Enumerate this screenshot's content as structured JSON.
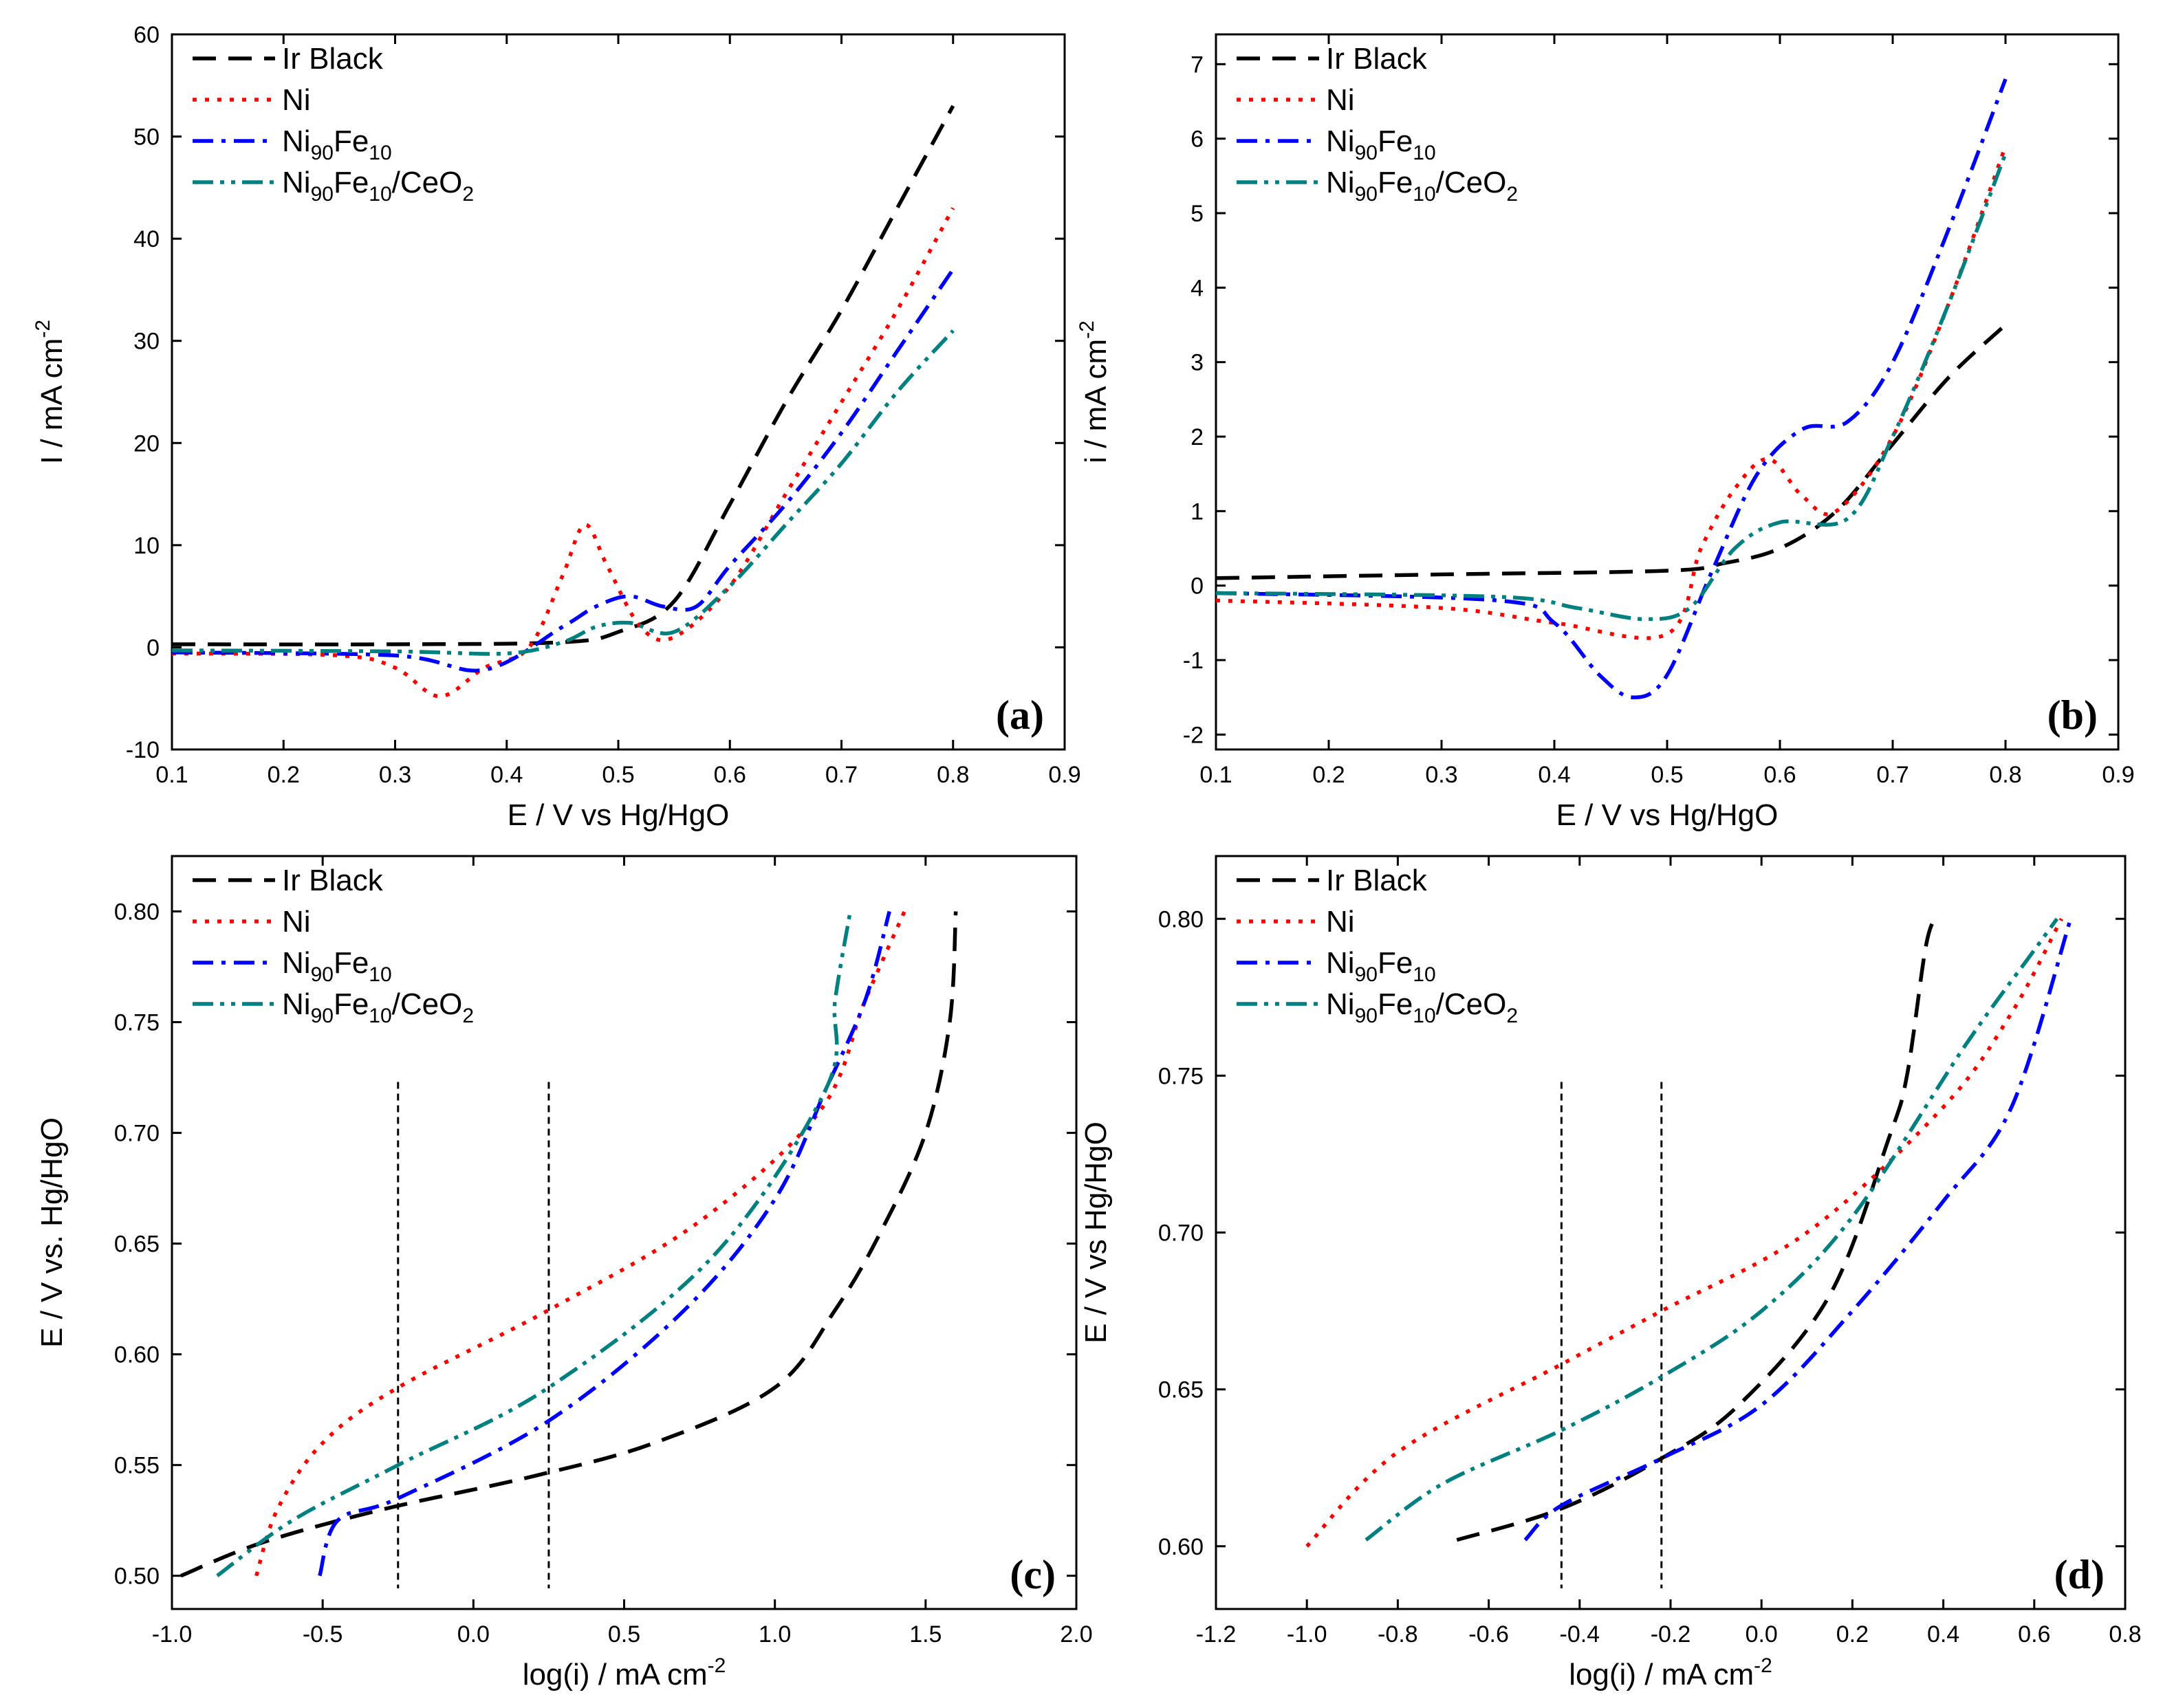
{
  "chart_data": [
    {
      "panel": "(a)",
      "type": "line",
      "xlabel": "E / V vs Hg/HgO",
      "ylabel": "I / mA cm",
      "ylabel_sup": "-2",
      "xlim": [
        0.1,
        0.9
      ],
      "ylim": [
        -10,
        60
      ],
      "xticks": [
        "0.1",
        "0.2",
        "0.3",
        "0.4",
        "0.5",
        "0.6",
        "0.7",
        "0.8",
        "0.9"
      ],
      "yticks": [
        "-10",
        "0",
        "10",
        "20",
        "30",
        "40",
        "50",
        "60"
      ],
      "series": [
        {
          "name": "Ir Black",
          "color": "#000000",
          "dash": "dash",
          "x": [
            0.1,
            0.3,
            0.45,
            0.5,
            0.55,
            0.6,
            0.65,
            0.7,
            0.75,
            0.8
          ],
          "y": [
            0.3,
            0.3,
            0.5,
            1.5,
            4.5,
            14,
            24,
            33,
            43,
            53
          ]
        },
        {
          "name": "Ni",
          "color": "#ff0000",
          "dash": "dot",
          "x": [
            0.1,
            0.25,
            0.3,
            0.34,
            0.38,
            0.42,
            0.45,
            0.47,
            0.49,
            0.52,
            0.55,
            0.6,
            0.65,
            0.7,
            0.75,
            0.8
          ],
          "y": [
            -0.6,
            -0.8,
            -2,
            -4.8,
            -2,
            0,
            7,
            12,
            8,
            2,
            1,
            6,
            15,
            24,
            33,
            43
          ]
        },
        {
          "name": "Ni90Fe10",
          "color": "#0000ff",
          "dash": "dashdot",
          "x": [
            0.1,
            0.3,
            0.38,
            0.45,
            0.48,
            0.51,
            0.54,
            0.57,
            0.6,
            0.65,
            0.7,
            0.75,
            0.8
          ],
          "y": [
            -0.5,
            -0.8,
            -2.2,
            2,
            4,
            5,
            4,
            4,
            8,
            14,
            21,
            29,
            37
          ]
        },
        {
          "name": "Ni90Fe10/CeO2",
          "color": "#008080",
          "dash": "dashdotdot",
          "x": [
            0.1,
            0.3,
            0.4,
            0.45,
            0.48,
            0.51,
            0.55,
            0.6,
            0.65,
            0.7,
            0.75,
            0.8
          ],
          "y": [
            -0.3,
            -0.4,
            -0.6,
            0.5,
            2,
            2.4,
            1.5,
            6,
            12,
            18,
            25,
            31
          ]
        }
      ]
    },
    {
      "panel": "(b)",
      "type": "line",
      "xlabel": "E / V vs Hg/HgO",
      "ylabel": "i / mA cm",
      "ylabel_sup": "-2",
      "xlim": [
        0.1,
        0.9
      ],
      "ylim": [
        -2.2,
        7.4
      ],
      "xticks": [
        "0.1",
        "0.2",
        "0.3",
        "0.4",
        "0.5",
        "0.6",
        "0.7",
        "0.8",
        "0.9"
      ],
      "yticks": [
        "-2",
        "-1",
        "0",
        "1",
        "2",
        "3",
        "4",
        "5",
        "6",
        "7"
      ],
      "series": [
        {
          "name": "Ir Black",
          "color": "#000000",
          "dash": "dash",
          "x": [
            0.1,
            0.3,
            0.5,
            0.55,
            0.6,
            0.65,
            0.7,
            0.75,
            0.8
          ],
          "y": [
            0.1,
            0.15,
            0.2,
            0.3,
            0.5,
            1.0,
            1.9,
            2.8,
            3.5
          ]
        },
        {
          "name": "Ni",
          "color": "#ff0000",
          "dash": "dot",
          "x": [
            0.1,
            0.3,
            0.4,
            0.5,
            0.53,
            0.56,
            0.59,
            0.62,
            0.65,
            0.7,
            0.75,
            0.8
          ],
          "y": [
            -0.2,
            -0.3,
            -0.5,
            -0.65,
            0.5,
            1.3,
            1.7,
            1.2,
            1.0,
            2.0,
            3.8,
            5.9
          ]
        },
        {
          "name": "Ni90Fe10",
          "color": "#0000ff",
          "dash": "dashdot",
          "x": [
            0.1,
            0.35,
            0.4,
            0.44,
            0.47,
            0.5,
            0.54,
            0.58,
            0.62,
            0.66,
            0.7,
            0.75,
            0.8
          ],
          "y": [
            -0.1,
            -0.2,
            -0.5,
            -1.2,
            -1.5,
            -1.2,
            0.2,
            1.5,
            2.1,
            2.2,
            3.0,
            4.8,
            6.8
          ]
        },
        {
          "name": "Ni90Fe10/CeO2",
          "color": "#008080",
          "dash": "dashdotdot",
          "x": [
            0.1,
            0.35,
            0.42,
            0.48,
            0.52,
            0.56,
            0.6,
            0.66,
            0.7,
            0.75,
            0.8
          ],
          "y": [
            -0.1,
            -0.15,
            -0.3,
            -0.45,
            -0.3,
            0.5,
            0.85,
            0.9,
            2.0,
            3.8,
            5.8
          ]
        }
      ]
    },
    {
      "panel": "(c)",
      "type": "line",
      "xlabel": "log(i) / mA cm",
      "xlabel_sup": "-2",
      "ylabel": "E / V vs. Hg/HgO",
      "xlim": [
        -1.0,
        2.0
      ],
      "ylim": [
        0.485,
        0.825
      ],
      "xticks": [
        "-1.0",
        "-0.5",
        "0.0",
        "0.5",
        "1.0",
        "1.5",
        "2.0"
      ],
      "yticks": [
        "0.50",
        "0.55",
        "0.60",
        "0.65",
        "0.70",
        "0.75",
        "0.80"
      ],
      "tafel_markers_x": [
        -0.25,
        0.25
      ],
      "series": [
        {
          "name": "Ir Black",
          "color": "#000000",
          "dash": "dash",
          "x": [
            -0.97,
            -0.7,
            -0.3,
            0.2,
            0.6,
            1.0,
            1.2,
            1.35,
            1.5,
            1.58,
            1.6
          ],
          "y": [
            0.5,
            0.515,
            0.53,
            0.545,
            0.56,
            0.585,
            0.62,
            0.655,
            0.7,
            0.75,
            0.8
          ]
        },
        {
          "name": "Ni",
          "color": "#ff0000",
          "dash": "dot",
          "x": [
            -0.72,
            -0.65,
            -0.5,
            -0.25,
            0.25,
            0.75,
            1.15,
            1.3,
            1.43
          ],
          "y": [
            0.5,
            0.53,
            0.56,
            0.585,
            0.62,
            0.66,
            0.71,
            0.76,
            0.8
          ]
        },
        {
          "name": "Ni90Fe10",
          "color": "#0000ff",
          "dash": "dashdot",
          "x": [
            -0.51,
            -0.45,
            -0.25,
            0.25,
            0.7,
            1.0,
            1.17,
            1.3,
            1.38
          ],
          "y": [
            0.5,
            0.525,
            0.535,
            0.57,
            0.62,
            0.67,
            0.72,
            0.76,
            0.8
          ]
        },
        {
          "name": "Ni90Fe10/CeO2",
          "color": "#008080",
          "dash": "dashdotdot",
          "x": [
            -0.85,
            -0.6,
            -0.25,
            0.25,
            0.8,
            1.17,
            1.2,
            1.25
          ],
          "y": [
            0.5,
            0.525,
            0.55,
            0.585,
            0.645,
            0.72,
            0.76,
            0.8
          ]
        }
      ]
    },
    {
      "panel": "(d)",
      "type": "line",
      "xlabel": "log(i) / mA cm",
      "xlabel_sup": "-2",
      "ylabel": "E / V vs Hg/HgO",
      "xlim": [
        -1.2,
        0.8
      ],
      "ylim": [
        0.58,
        0.82
      ],
      "xticks": [
        "-1.2",
        "-1.0",
        "-0.8",
        "-0.6",
        "-0.4",
        "-0.2",
        "0.0",
        "0.2",
        "0.4",
        "0.6",
        "0.8"
      ],
      "yticks": [
        "0.60",
        "0.65",
        "0.70",
        "0.75",
        "0.80"
      ],
      "tafel_markers_x": [
        -0.44,
        -0.22
      ],
      "series": [
        {
          "name": "Ir Black",
          "color": "#000000",
          "dash": "dash",
          "x": [
            -0.67,
            -0.44,
            -0.22,
            -0.05,
            0.15,
            0.28,
            0.32,
            0.36,
            0.38
          ],
          "y": [
            0.602,
            0.612,
            0.628,
            0.645,
            0.68,
            0.73,
            0.75,
            0.79,
            0.8
          ]
        },
        {
          "name": "Ni",
          "color": "#ff0000",
          "dash": "dot",
          "x": [
            -1.0,
            -0.8,
            -0.44,
            -0.22,
            0.1,
            0.4,
            0.55,
            0.66
          ],
          "y": [
            0.6,
            0.63,
            0.658,
            0.675,
            0.7,
            0.74,
            0.77,
            0.8
          ]
        },
        {
          "name": "Ni90Fe10",
          "color": "#0000ff",
          "dash": "dashdot",
          "x": [
            -0.52,
            -0.44,
            -0.22,
            0.0,
            0.2,
            0.4,
            0.55,
            0.68
          ],
          "y": [
            0.602,
            0.613,
            0.628,
            0.645,
            0.675,
            0.71,
            0.74,
            0.8
          ]
        },
        {
          "name": "Ni90Fe10/CeO2",
          "color": "#008080",
          "dash": "dashdotdot",
          "x": [
            -0.87,
            -0.7,
            -0.44,
            -0.22,
            0.0,
            0.2,
            0.45,
            0.6,
            0.65
          ],
          "y": [
            0.602,
            0.62,
            0.637,
            0.654,
            0.675,
            0.705,
            0.76,
            0.79,
            0.8
          ]
        }
      ]
    }
  ],
  "legend": {
    "ir_black": "Ir Black",
    "ni": "Ni",
    "nife_base": "Ni",
    "nife_sub1": "90",
    "nife_mid": "Fe",
    "nife_sub2": "10",
    "ceo2_suffix": "/CeO",
    "ceo2_sub": "2"
  }
}
